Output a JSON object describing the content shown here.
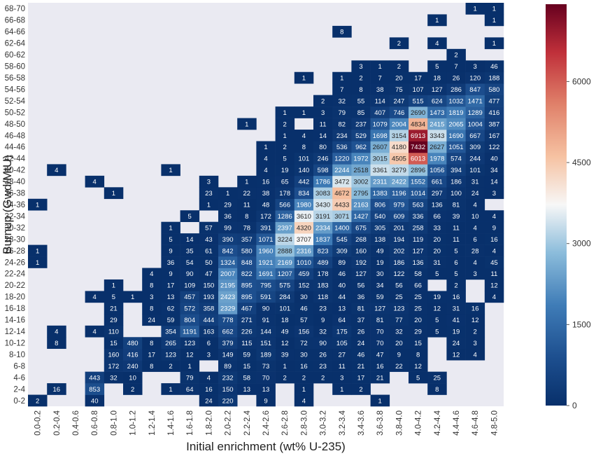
{
  "chart_data": {
    "type": "heatmap",
    "xlabel": "Initial enrichment (wt% U-235)",
    "ylabel": "Burnup (Gwd/MtU)",
    "x_categories": [
      "0.0-0.2",
      "0.2-0.4",
      "0.4-0.6",
      "0.6-0.8",
      "0.8-1.0",
      "1.0-1.2",
      "1.2-1.4",
      "1.4-1.6",
      "1.6-1.8",
      "1.8-2.0",
      "2.0-2.2",
      "2.2-2.4",
      "2.4-2.6",
      "2.6-2.8",
      "2.8-3.0",
      "3.0-3.2",
      "3.2-3.4",
      "3.4-3.6",
      "3.6-3.8",
      "3.8-4.0",
      "4.0-4.2",
      "4.2-4.4",
      "4.4-4.6",
      "4.6-4.8",
      "4.8-5.0"
    ],
    "y_categories": [
      "0-2",
      "2-4",
      "4-6",
      "6-8",
      "8-10",
      "10-12",
      "12-14",
      "14-16",
      "16-18",
      "18-20",
      "20-22",
      "22-24",
      "24-26",
      "26-28",
      "28-30",
      "30-32",
      "32-34",
      "34-36",
      "36-38",
      "38-40",
      "40-42",
      "42-44",
      "44-46",
      "46-48",
      "48-50",
      "50-52",
      "52-54",
      "54-56",
      "56-58",
      "58-60",
      "60-62",
      "62-64",
      "64-66",
      "66-68",
      "68-70"
    ],
    "rows": [
      {
        "y": "0-2",
        "values": [
          2,
          null,
          null,
          40,
          null,
          null,
          null,
          null,
          null,
          24,
          220,
          null,
          9,
          null,
          4,
          null,
          null,
          null,
          1,
          null,
          null,
          null,
          null,
          null,
          null
        ]
      },
      {
        "y": "2-4",
        "values": [
          null,
          16,
          null,
          853,
          null,
          2,
          null,
          1,
          64,
          16,
          150,
          13,
          13,
          null,
          1,
          null,
          1,
          2,
          null,
          null,
          null,
          8,
          null,
          null,
          null
        ]
      },
      {
        "y": "4-6",
        "values": [
          null,
          null,
          null,
          443,
          32,
          10,
          null,
          null,
          79,
          4,
          232,
          58,
          70,
          2,
          2,
          2,
          3,
          17,
          21,
          null,
          5,
          25,
          null,
          null,
          null
        ]
      },
      {
        "y": "6-8",
        "values": [
          null,
          null,
          null,
          null,
          172,
          240,
          8,
          2,
          1,
          null,
          89,
          15,
          73,
          1,
          16,
          23,
          11,
          21,
          16,
          22,
          12,
          null,
          null,
          null,
          null
        ]
      },
      {
        "y": "8-10",
        "values": [
          null,
          null,
          null,
          null,
          160,
          416,
          17,
          123,
          12,
          3,
          149,
          59,
          189,
          39,
          30,
          26,
          27,
          46,
          47,
          9,
          8,
          null,
          12,
          4,
          null
        ]
      },
      {
        "y": "10-12",
        "values": [
          null,
          8,
          null,
          null,
          15,
          480,
          8,
          265,
          123,
          6,
          379,
          115,
          151,
          12,
          72,
          90,
          105,
          24,
          70,
          20,
          15,
          null,
          24,
          3,
          null
        ]
      },
      {
        "y": "12-14",
        "values": [
          null,
          4,
          null,
          4,
          110,
          null,
          null,
          354,
          1191,
          163,
          662,
          226,
          144,
          49,
          156,
          32,
          175,
          26,
          70,
          32,
          29,
          5,
          19,
          2,
          null
        ]
      },
      {
        "y": "14-16",
        "values": [
          null,
          null,
          null,
          null,
          29,
          null,
          24,
          59,
          804,
          444,
          778,
          271,
          91,
          18,
          57,
          9,
          64,
          37,
          81,
          77,
          20,
          5,
          41,
          12,
          null
        ]
      },
      {
        "y": "16-18",
        "values": [
          null,
          null,
          null,
          null,
          21,
          null,
          8,
          62,
          572,
          358,
          2329,
          467,
          90,
          101,
          46,
          23,
          13,
          81,
          127,
          123,
          25,
          12,
          31,
          16,
          null
        ]
      },
      {
        "y": "18-20",
        "values": [
          null,
          null,
          null,
          4,
          5,
          1,
          3,
          13,
          457,
          193,
          2423,
          895,
          591,
          284,
          30,
          118,
          44,
          36,
          59,
          25,
          25,
          19,
          16,
          null,
          4
        ]
      },
      {
        "y": "20-22",
        "values": [
          null,
          null,
          null,
          null,
          1,
          null,
          8,
          17,
          109,
          150,
          2195,
          895,
          795,
          575,
          152,
          183,
          40,
          56,
          34,
          56,
          66,
          null,
          2,
          null,
          12
        ]
      },
      {
        "y": "22-24",
        "values": [
          null,
          null,
          null,
          null,
          null,
          null,
          4,
          9,
          90,
          47,
          2007,
          822,
          1691,
          1207,
          459,
          178,
          46,
          127,
          30,
          122,
          58,
          5,
          5,
          3,
          11
        ]
      },
      {
        "y": "24-26",
        "values": [
          1,
          null,
          null,
          null,
          null,
          null,
          null,
          36,
          54,
          50,
          1324,
          848,
          1921,
          2169,
          1010,
          489,
          89,
          192,
          19,
          186,
          136,
          31,
          6,
          4,
          45
        ]
      },
      {
        "y": "26-28",
        "values": [
          1,
          null,
          null,
          null,
          null,
          null,
          null,
          9,
          35,
          61,
          842,
          580,
          1960,
          2888,
          2316,
          823,
          309,
          160,
          49,
          202,
          127,
          20,
          5,
          28,
          4
        ]
      },
      {
        "y": "28-30",
        "values": [
          null,
          null,
          null,
          null,
          null,
          null,
          null,
          5,
          14,
          43,
          390,
          357,
          1071,
          3224,
          3707,
          1837,
          545,
          268,
          138,
          194,
          119,
          20,
          11,
          6,
          16
        ]
      },
      {
        "y": "30-32",
        "values": [
          null,
          null,
          null,
          null,
          null,
          null,
          null,
          1,
          null,
          57,
          99,
          78,
          391,
          2397,
          4320,
          2334,
          1400,
          675,
          305,
          201,
          258,
          33,
          11,
          4,
          9
        ]
      },
      {
        "y": "32-34",
        "values": [
          null,
          null,
          null,
          null,
          null,
          null,
          null,
          null,
          5,
          null,
          36,
          8,
          172,
          1286,
          3610,
          3191,
          3071,
          1427,
          540,
          609,
          336,
          66,
          39,
          10,
          4
        ]
      },
      {
        "y": "34-36",
        "values": [
          1,
          null,
          null,
          null,
          null,
          null,
          null,
          null,
          null,
          1,
          29,
          11,
          48,
          566,
          1980,
          3430,
          4433,
          2163,
          806,
          979,
          563,
          136,
          81,
          4,
          null
        ]
      },
      {
        "y": "36-38",
        "values": [
          null,
          null,
          null,
          null,
          1,
          null,
          null,
          null,
          null,
          23,
          1,
          22,
          38,
          178,
          834,
          3083,
          4672,
          2795,
          1383,
          1196,
          1014,
          297,
          100,
          24,
          3
        ]
      },
      {
        "y": "38-40",
        "values": [
          null,
          null,
          null,
          4,
          null,
          null,
          null,
          null,
          null,
          3,
          null,
          1,
          16,
          65,
          442,
          1786,
          3472,
          3002,
          2311,
          2422,
          1552,
          661,
          186,
          31,
          14
        ]
      },
      {
        "y": "40-42",
        "values": [
          null,
          4,
          null,
          null,
          null,
          null,
          null,
          1,
          null,
          null,
          null,
          null,
          4,
          19,
          140,
          598,
          2244,
          2518,
          3361,
          3279,
          2896,
          1056,
          394,
          101,
          34
        ]
      },
      {
        "y": "42-44",
        "values": [
          null,
          null,
          null,
          null,
          null,
          null,
          null,
          null,
          null,
          null,
          null,
          null,
          4,
          5,
          101,
          246,
          1220,
          1972,
          3015,
          4505,
          6013,
          1978,
          574,
          244,
          40
        ]
      },
      {
        "y": "44-46",
        "values": [
          null,
          null,
          null,
          null,
          null,
          null,
          null,
          null,
          null,
          null,
          null,
          null,
          1,
          2,
          8,
          80,
          536,
          962,
          2607,
          4180,
          7432,
          2627,
          1051,
          309,
          122
        ]
      },
      {
        "y": "46-48",
        "values": [
          null,
          null,
          null,
          null,
          null,
          null,
          null,
          null,
          null,
          null,
          null,
          null,
          null,
          1,
          4,
          14,
          234,
          529,
          1698,
          3154,
          6913,
          3343,
          1690,
          667,
          167
        ]
      },
      {
        "y": "48-50",
        "values": [
          null,
          null,
          null,
          null,
          null,
          null,
          null,
          null,
          null,
          null,
          null,
          1,
          null,
          2,
          null,
          11,
          82,
          237,
          1079,
          2004,
          4834,
          2415,
          2065,
          1004,
          387
        ]
      },
      {
        "y": "50-52",
        "values": [
          null,
          null,
          null,
          null,
          null,
          null,
          null,
          null,
          null,
          null,
          null,
          null,
          null,
          1,
          1,
          3,
          79,
          85,
          407,
          746,
          2690,
          1473,
          1819,
          1289,
          416
        ]
      },
      {
        "y": "52-54",
        "values": [
          null,
          null,
          null,
          null,
          null,
          null,
          null,
          null,
          null,
          null,
          null,
          null,
          null,
          null,
          null,
          2,
          32,
          55,
          114,
          247,
          515,
          624,
          1032,
          1471,
          477
        ]
      },
      {
        "y": "54-56",
        "values": [
          null,
          null,
          null,
          null,
          null,
          null,
          null,
          null,
          null,
          null,
          null,
          null,
          null,
          null,
          null,
          null,
          7,
          8,
          38,
          75,
          107,
          127,
          286,
          847,
          580
        ]
      },
      {
        "y": "56-58",
        "values": [
          null,
          null,
          null,
          null,
          null,
          null,
          null,
          null,
          null,
          null,
          null,
          null,
          null,
          null,
          1,
          null,
          1,
          2,
          7,
          20,
          17,
          18,
          26,
          120,
          188
        ]
      },
      {
        "y": "58-60",
        "values": [
          null,
          null,
          null,
          null,
          null,
          null,
          null,
          null,
          null,
          null,
          null,
          null,
          null,
          null,
          null,
          null,
          null,
          3,
          1,
          2,
          null,
          5,
          7,
          3,
          46
        ]
      },
      {
        "y": "60-62",
        "values": [
          null,
          null,
          null,
          null,
          null,
          null,
          null,
          null,
          null,
          null,
          null,
          null,
          null,
          null,
          null,
          null,
          null,
          null,
          null,
          null,
          null,
          null,
          2,
          null,
          null
        ]
      },
      {
        "y": "62-64",
        "values": [
          null,
          null,
          null,
          null,
          null,
          null,
          null,
          null,
          null,
          null,
          null,
          null,
          null,
          null,
          null,
          null,
          null,
          null,
          null,
          2,
          null,
          4,
          null,
          null,
          1
        ]
      },
      {
        "y": "64-66",
        "values": [
          null,
          null,
          null,
          null,
          null,
          null,
          null,
          null,
          null,
          null,
          null,
          null,
          null,
          null,
          null,
          null,
          8,
          null,
          null,
          null,
          null,
          null,
          null,
          null,
          null
        ]
      },
      {
        "y": "66-68",
        "values": [
          null,
          null,
          null,
          null,
          null,
          null,
          null,
          null,
          null,
          null,
          null,
          null,
          null,
          null,
          null,
          null,
          null,
          null,
          null,
          null,
          null,
          1,
          null,
          null,
          1
        ]
      },
      {
        "y": "68-70",
        "values": [
          null,
          null,
          null,
          null,
          null,
          null,
          null,
          null,
          null,
          null,
          null,
          null,
          null,
          null,
          null,
          null,
          null,
          null,
          null,
          null,
          null,
          null,
          null,
          1,
          1
        ]
      }
    ],
    "colorbar": {
      "min": 0,
      "max": 7432,
      "ticks": [
        0,
        1500,
        3000,
        4500,
        6000
      ],
      "colors": {
        "low": "#08306b",
        "mid": "#f7f7f7",
        "high": "#67001f"
      }
    },
    "background": "#eaeaf2",
    "grid": false
  }
}
